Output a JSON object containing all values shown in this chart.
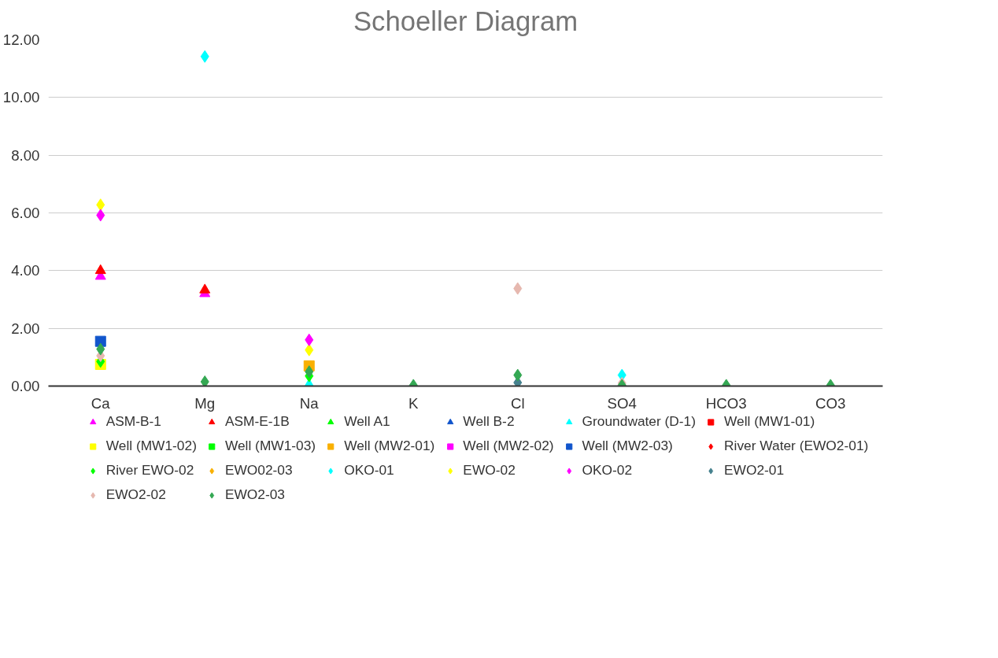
{
  "chart_data": {
    "type": "scatter",
    "title": "Schoeller Diagram",
    "categories": [
      "Ca",
      "Mg",
      "Na",
      "K",
      "Cl",
      "SO4",
      "HCO3",
      "CO3"
    ],
    "ylim": [
      0,
      12
    ],
    "yticks": [
      {
        "value": 0,
        "label": "0.00"
      },
      {
        "value": 2,
        "label": "2.00"
      },
      {
        "value": 4,
        "label": "4.00"
      },
      {
        "value": 6,
        "label": "6.00"
      },
      {
        "value": 8,
        "label": "8.00"
      },
      {
        "value": 10,
        "label": "10.00"
      },
      {
        "value": 12,
        "label": "12.00"
      }
    ],
    "grid": "y",
    "legend": "bottom",
    "series": [
      {
        "name": "ASM-B-1",
        "color": "#ff00ff",
        "marker": "triangle",
        "values": [
          3.8,
          3.2,
          null,
          null,
          null,
          null,
          null,
          null
        ]
      },
      {
        "name": "ASM-E-1B",
        "color": "#ff0000",
        "marker": "triangle",
        "values": [
          4.0,
          3.33,
          null,
          null,
          null,
          null,
          null,
          null
        ]
      },
      {
        "name": "Well A1",
        "color": "#00ff00",
        "marker": "triangle",
        "values": [
          null,
          null,
          null,
          null,
          null,
          null,
          null,
          null
        ]
      },
      {
        "name": "Well B-2",
        "color": "#1155cc",
        "marker": "triangle",
        "values": [
          null,
          null,
          null,
          null,
          null,
          null,
          null,
          null
        ]
      },
      {
        "name": "Groundwater (D-1)",
        "color": "#00ffff",
        "marker": "triangle",
        "values": [
          null,
          null,
          0.05,
          null,
          null,
          null,
          null,
          null
        ]
      },
      {
        "name": "Well (MW1-01)",
        "color": "#ff0000",
        "marker": "square",
        "values": [
          null,
          null,
          null,
          null,
          null,
          null,
          null,
          null
        ]
      },
      {
        "name": "Well (MW1-02)",
        "color": "#ffff00",
        "marker": "square",
        "values": [
          0.75,
          null,
          null,
          null,
          null,
          null,
          null,
          null
        ]
      },
      {
        "name": "Well (MW1-03)",
        "color": "#00ff00",
        "marker": "square",
        "values": [
          null,
          null,
          null,
          null,
          null,
          null,
          null,
          null
        ]
      },
      {
        "name": "Well (MW2-01)",
        "color": "#f9b000",
        "marker": "square",
        "values": [
          null,
          null,
          0.7,
          null,
          null,
          null,
          null,
          null
        ]
      },
      {
        "name": "Well (MW2-02)",
        "color": "#ff00ff",
        "marker": "square",
        "values": [
          null,
          null,
          null,
          null,
          null,
          null,
          null,
          null
        ]
      },
      {
        "name": "Well (MW2-03)",
        "color": "#1155cc",
        "marker": "square",
        "values": [
          1.55,
          null,
          null,
          null,
          null,
          null,
          null,
          null
        ]
      },
      {
        "name": "River Water (EWO2-01)",
        "color": "#ff0000",
        "marker": "diamond",
        "values": [
          null,
          null,
          null,
          null,
          null,
          null,
          null,
          null
        ]
      },
      {
        "name": "River EWO-02",
        "color": "#00ff00",
        "marker": "diamond",
        "values": [
          0.85,
          null,
          0.35,
          null,
          null,
          null,
          null,
          null
        ]
      },
      {
        "name": "EWO02-03",
        "color": "#f9b000",
        "marker": "diamond",
        "values": [
          null,
          null,
          null,
          null,
          null,
          null,
          null,
          null
        ]
      },
      {
        "name": "OKO-01",
        "color": "#00ffff",
        "marker": "diamond",
        "values": [
          null,
          11.42,
          null,
          null,
          null,
          0.38,
          null,
          null
        ]
      },
      {
        "name": "EWO-02",
        "color": "#ffff00",
        "marker": "diamond",
        "values": [
          6.28,
          null,
          1.25,
          null,
          null,
          null,
          null,
          null
        ]
      },
      {
        "name": "OKO-02",
        "color": "#ff00ff",
        "marker": "diamond",
        "values": [
          5.92,
          null,
          1.6,
          null,
          null,
          null,
          null,
          null
        ]
      },
      {
        "name": "EWO2-01",
        "color": "#45818e",
        "marker": "diamond",
        "values": [
          null,
          null,
          null,
          null,
          0.12,
          null,
          null,
          null
        ]
      },
      {
        "name": "EWO2-02",
        "color": "#e6b8af",
        "marker": "diamond",
        "values": [
          1.05,
          null,
          null,
          null,
          3.38,
          0.1,
          null,
          null
        ]
      },
      {
        "name": "EWO2-03",
        "color": "#34a853",
        "marker": "diamond",
        "values": [
          1.28,
          0.15,
          0.5,
          0.03,
          0.38,
          0.03,
          0.03,
          0.03
        ]
      }
    ]
  }
}
